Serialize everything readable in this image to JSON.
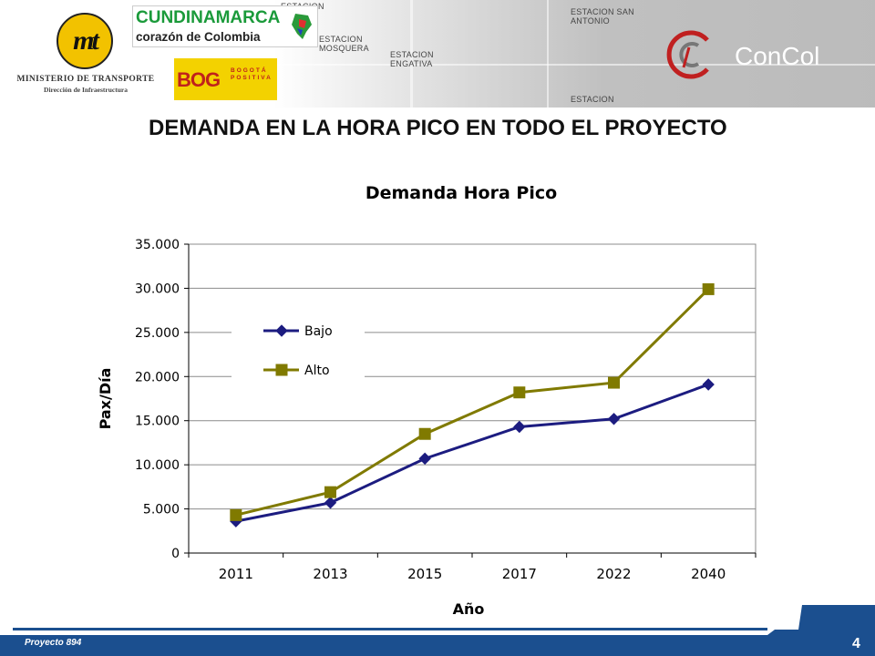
{
  "header": {
    "ministry_line1": "MINISTERIO DE TRANSPORTE",
    "ministry_line2": "Dirección de Infraestructura",
    "ministry_logo_text": "mt",
    "cundinamarca_title": "CUNDINAMARCA",
    "cundinamarca_slogan": "corazón de Colombia",
    "bogota_logo_text": "BOG",
    "bogota_slogan": "BOGOTÁ POSITIVA",
    "concol_name": "ConCol",
    "map_stations": [
      "ESTACION",
      "ESTACION MOSQUERA",
      "ESTACION ENGATIVA",
      "ESTACION SAN ANTONIO",
      "ESTACION"
    ]
  },
  "slide": {
    "title": "DEMANDA EN LA HORA PICO EN TODO EL PROYECTO"
  },
  "chart_data": {
    "type": "line",
    "title": "Demanda Hora Pico",
    "xlabel": "Año",
    "ylabel": "Pax/Día",
    "categories": [
      "2011",
      "2013",
      "2015",
      "2017",
      "2022",
      "2040"
    ],
    "y_ticks": [
      "0",
      "5.000",
      "10.000",
      "15.000",
      "20.000",
      "25.000",
      "30.000",
      "35.000"
    ],
    "ylim": [
      0,
      35000
    ],
    "grid": "horizontal",
    "legend_position": "upper-left, inside plot",
    "series": [
      {
        "name": "Bajo",
        "marker": "diamond",
        "color": "#1c1c80",
        "values": [
          3600,
          5700,
          10700,
          14300,
          15200,
          19100
        ]
      },
      {
        "name": "Alto",
        "marker": "square",
        "color": "#807a00",
        "values": [
          4300,
          6900,
          13500,
          18200,
          19300,
          29900
        ]
      }
    ]
  },
  "footer": {
    "project_label": "Proyecto 894",
    "page_number": "4",
    "bar_color": "#1b4f8f"
  }
}
